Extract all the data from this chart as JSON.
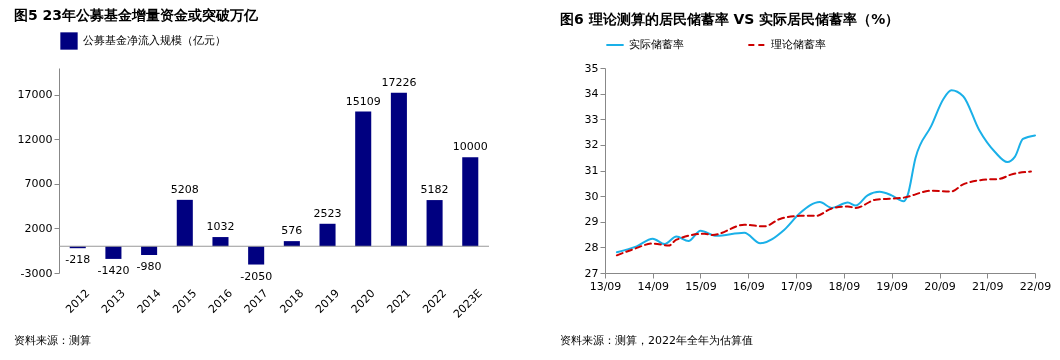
{
  "chart_data": [
    {
      "type": "bar",
      "title": "图5  23年公募基金增量资金或突破万亿",
      "categories": [
        "2012",
        "2013",
        "2014",
        "2015",
        "2016",
        "2017",
        "2018",
        "2019",
        "2020",
        "2021",
        "2022",
        "2023E"
      ],
      "series": [
        {
          "name": "公募基金净流入规模（亿元）",
          "color": "#000080",
          "values": [
            -218,
            -1420,
            -980,
            5208,
            1032,
            -2050,
            576,
            2523,
            15109,
            17226,
            5182,
            10000
          ]
        }
      ],
      "ylim": [
        -3000,
        20000
      ],
      "yticks": [
        -3000,
        2000,
        7000,
        12000,
        17000
      ],
      "data_labels": true,
      "legend": "top",
      "annotations": [
        "资料来源：测算"
      ]
    },
    {
      "type": "line",
      "title": "图6  理论测算的居民储蓄率 VS 实际居民储蓄率（%）",
      "xlim": [
        "2013-09",
        "2022-09"
      ],
      "xticks": [
        {
          "value": "2013-09",
          "label": "13/09"
        },
        {
          "value": "2014-09",
          "label": "14/09"
        },
        {
          "value": "2015-09",
          "label": "15/09"
        },
        {
          "value": "2016-09",
          "label": "16/09"
        },
        {
          "value": "2017-09",
          "label": "17/09"
        },
        {
          "value": "2018-09",
          "label": "18/09"
        },
        {
          "value": "2019-09",
          "label": "19/09"
        },
        {
          "value": "2020-09",
          "label": "20/09"
        },
        {
          "value": "2021-09",
          "label": "21/09"
        },
        {
          "value": "2022-09",
          "label": "22/09"
        }
      ],
      "ylim": [
        27,
        35
      ],
      "yticks": [
        27,
        28,
        29,
        30,
        31,
        32,
        33,
        34,
        35
      ],
      "legend": "top",
      "series": [
        {
          "name": "实际储蓄率",
          "color": "#1ab0e8",
          "line_style": "solid",
          "x": [
            "2013-12",
            "2014-05",
            "2014-09",
            "2014-12",
            "2015-03",
            "2015-06",
            "2015-09",
            "2016-01",
            "2016-08",
            "2016-12",
            "2017-06",
            "2017-10",
            "2018-03",
            "2018-06",
            "2018-10",
            "2018-12",
            "2019-03",
            "2019-06",
            "2019-09",
            "2019-12",
            "2020-01",
            "2020-03",
            "2020-07",
            "2020-10",
            "2020-12",
            "2021-03",
            "2021-07",
            "2021-11",
            "2022-02",
            "2022-04",
            "2022-06",
            "2022-09"
          ],
          "values": [
            27.81,
            28.04,
            28.34,
            28.13,
            28.42,
            28.25,
            28.65,
            28.45,
            28.57,
            28.16,
            28.68,
            29.34,
            29.77,
            29.54,
            29.75,
            29.63,
            30.03,
            30.17,
            30.03,
            29.8,
            30.03,
            31.48,
            32.75,
            33.79,
            34.13,
            33.9,
            32.58,
            31.71,
            31.33,
            31.54,
            32.23,
            32.37
          ]
        },
        {
          "name": "理论储蓄率",
          "color": "#cc0000",
          "line_style": "dashed",
          "x": [
            "2013-12",
            "2014-04",
            "2014-09",
            "2015-01",
            "2015-03",
            "2015-10",
            "2015-12",
            "2016-08",
            "2017-01",
            "2017-05",
            "2017-10",
            "2018-02",
            "2018-06",
            "2018-10",
            "2018-12",
            "2019-05",
            "2019-12",
            "2020-07",
            "2020-12",
            "2021-03",
            "2021-09",
            "2021-12",
            "2022-03",
            "2022-08"
          ],
          "values": [
            27.69,
            27.92,
            28.15,
            28.07,
            28.3,
            28.53,
            28.48,
            28.88,
            28.82,
            29.11,
            29.23,
            29.23,
            29.52,
            29.6,
            29.54,
            29.86,
            29.94,
            30.21,
            30.18,
            30.46,
            30.65,
            30.67,
            30.84,
            30.96
          ]
        }
      ],
      "annotations": [
        "资料来源：测算，2022年全年为估算值"
      ]
    }
  ]
}
